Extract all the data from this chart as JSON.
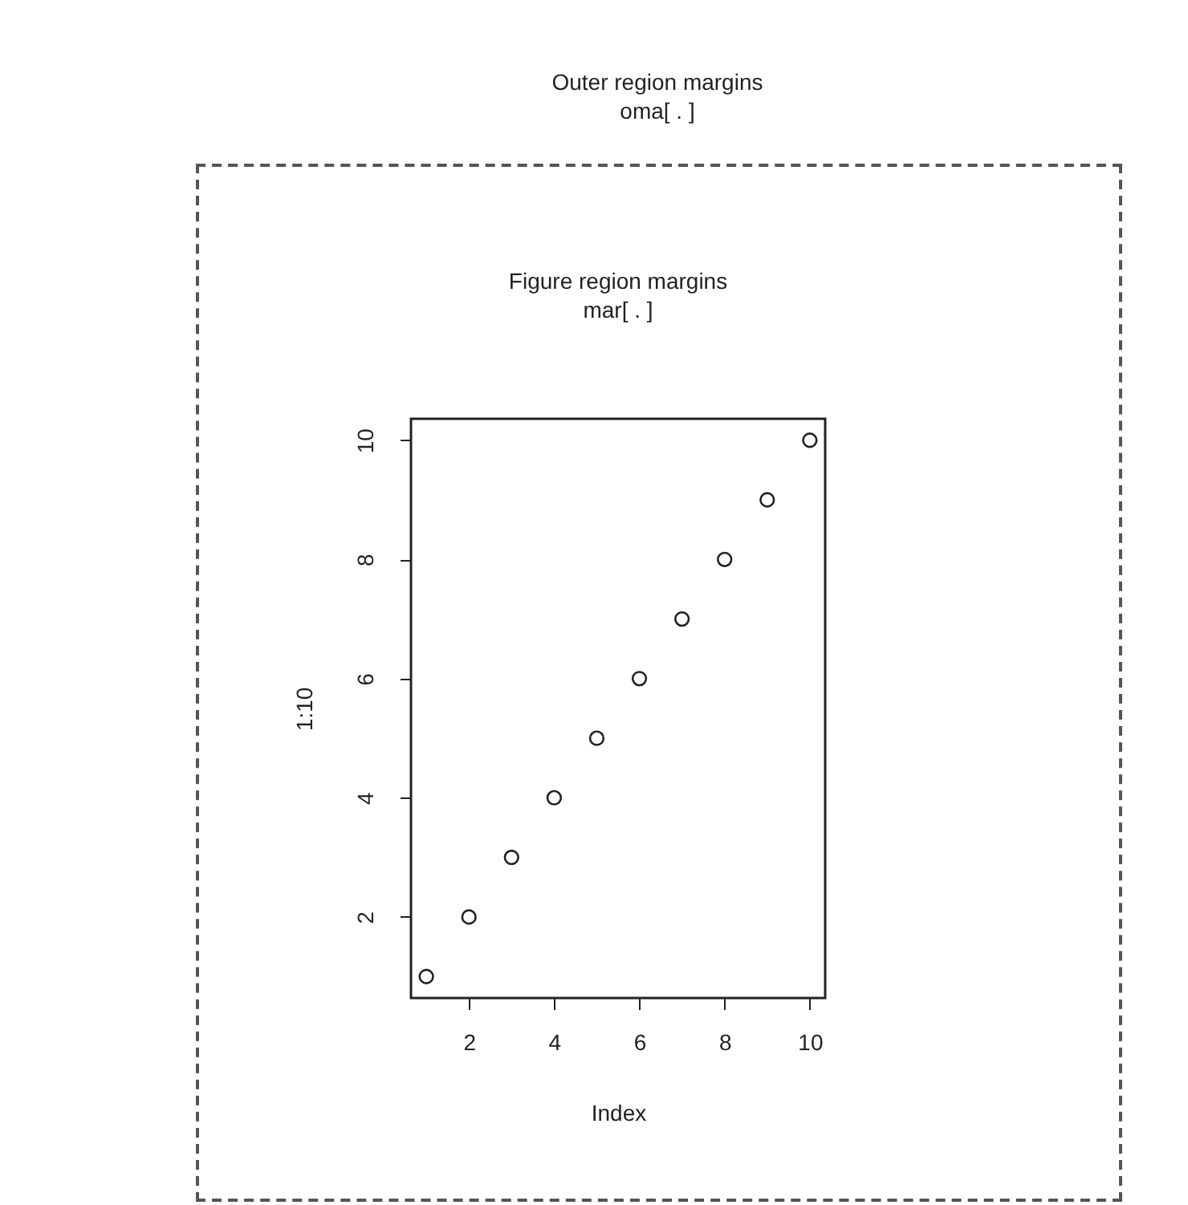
{
  "chart_data": {
    "type": "scatter",
    "title": "Outer region margins",
    "subtitle": "oma[ . ]",
    "annotations": [
      "Figure region margins",
      "mar[ . ]"
    ],
    "xlabel": "Index",
    "ylabel": "1:10",
    "x": [
      1,
      2,
      3,
      4,
      5,
      6,
      7,
      8,
      9,
      10
    ],
    "values": [
      1,
      2,
      3,
      4,
      5,
      6,
      7,
      8,
      9,
      10
    ],
    "color": "#222222",
    "marker": "circle",
    "xlim": [
      0.64,
      10.36
    ],
    "ylim": [
      0.64,
      10.36
    ],
    "xticks": [
      2,
      4,
      6,
      8,
      10
    ],
    "yticks": [
      2,
      4,
      6,
      8,
      10
    ]
  }
}
